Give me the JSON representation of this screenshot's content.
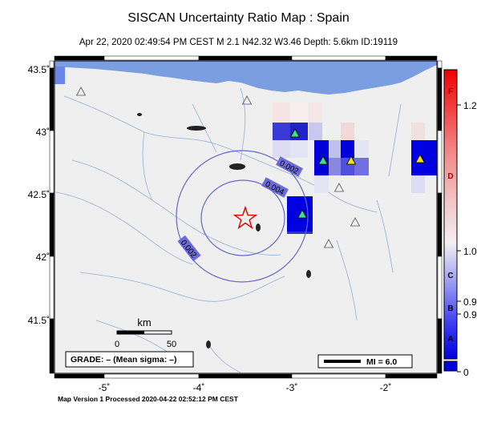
{
  "header": {
    "title": "SISCAN Uncertainty Ratio Map : Spain",
    "subtitle": "Apr 22, 2020 02:49:54 PM CEST   M 2.1   N42.32 W3.46   Depth: 5.6km   ID:19119"
  },
  "footer": {
    "text": "Map Version 1 Processed 2020-04-22 02:52:12 PM CEST"
  },
  "map": {
    "lon_ticks": [
      "-5˚",
      "-4˚",
      "-3˚",
      "-2˚"
    ],
    "lat_ticks": [
      "43.5˚",
      "43˚",
      "42.5˚",
      "42˚",
      "41.5˚"
    ],
    "contours": [
      "0.002",
      "0.004",
      "0.002"
    ],
    "scale": {
      "title": "km",
      "min": "0",
      "max": "50"
    },
    "grade": "GRADE: – (Mean sigma: –)",
    "mi_legend": "MI = 6.0",
    "epicenter": {
      "lat": 42.32,
      "lon": -3.46
    }
  },
  "colorbar": {
    "letters": [
      "F",
      "D",
      "C",
      "B",
      "A"
    ],
    "values": [
      "1.2",
      "1.0",
      "0.9",
      "0.9",
      "0"
    ]
  },
  "colors": {
    "sea": "#7a9ee0",
    "land": "#efefef",
    "high": "#ff0000",
    "low": "#0000e0",
    "contour": "#6666cc"
  }
}
